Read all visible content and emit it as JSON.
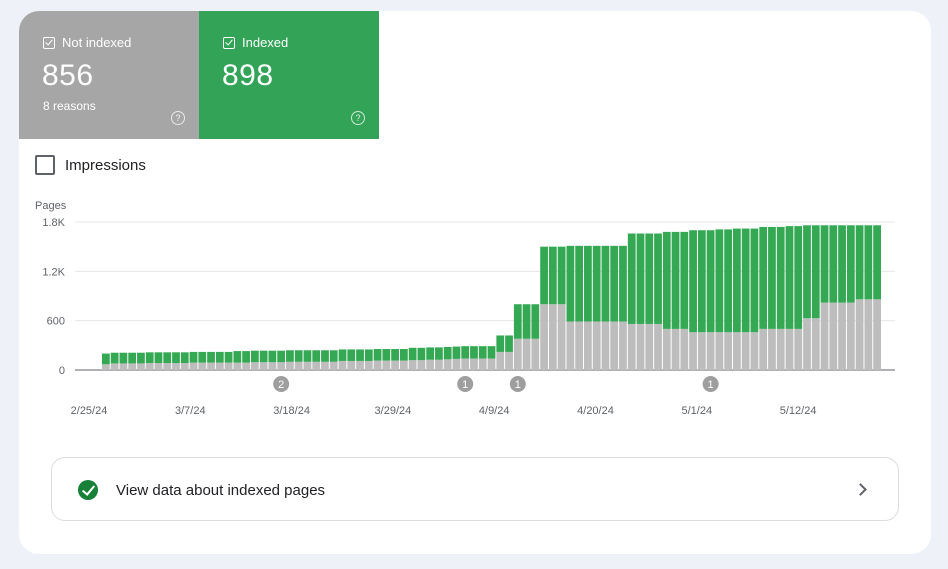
{
  "tiles": {
    "not_indexed": {
      "label": "Not indexed",
      "value": "856",
      "sub": "8 reasons",
      "color": "#a6a6a6",
      "checked": true
    },
    "indexed": {
      "label": "Indexed",
      "value": "898",
      "color": "#33a457",
      "checked": true
    }
  },
  "impressions": {
    "label": "Impressions",
    "checked": false
  },
  "view_link": {
    "label": "View data about indexed pages"
  },
  "icons": {
    "tile_check": "checkbox-checked-icon",
    "help": "help-circle-icon",
    "impressions_checkbox": "checkbox-empty-icon",
    "success": "check-circle-icon",
    "chevron": "chevron-right-icon"
  },
  "chart_data": {
    "type": "bar",
    "stacked": true,
    "ylabel": "Pages",
    "yticks": [
      "0",
      "600",
      "1.2K",
      "1.8K"
    ],
    "ylim": [
      0,
      1800
    ],
    "x_tick_labels": [
      "2/25/24",
      "3/7/24",
      "3/18/24",
      "3/29/24",
      "4/9/24",
      "4/20/24",
      "5/1/24",
      "5/12/24"
    ],
    "date_range": [
      "2/26/24",
      "5/22/24"
    ],
    "grid": true,
    "colors": {
      "not_indexed": "#bdbdbd",
      "indexed": "#34a853"
    },
    "series": [
      {
        "name": "Not indexed",
        "values": [
          70,
          80,
          80,
          80,
          80,
          85,
          85,
          85,
          85,
          85,
          90,
          90,
          90,
          90,
          90,
          90,
          90,
          95,
          95,
          95,
          95,
          100,
          100,
          100,
          100,
          100,
          100,
          110,
          110,
          110,
          110,
          115,
          115,
          115,
          115,
          120,
          120,
          125,
          125,
          130,
          135,
          140,
          140,
          140,
          140,
          220,
          220,
          380,
          380,
          380,
          800,
          800,
          800,
          590,
          590,
          590,
          590,
          590,
          590,
          590,
          560,
          560,
          560,
          560,
          500,
          500,
          500,
          460,
          460,
          460,
          460,
          460,
          460,
          460,
          460,
          500,
          500,
          500,
          500,
          500,
          630,
          630,
          820,
          820,
          820,
          820,
          860,
          860,
          860
        ]
      },
      {
        "name": "Indexed",
        "values": [
          130,
          130,
          130,
          130,
          130,
          130,
          130,
          130,
          130,
          130,
          130,
          130,
          130,
          130,
          130,
          140,
          140,
          140,
          140,
          140,
          140,
          140,
          140,
          140,
          140,
          140,
          140,
          140,
          140,
          140,
          140,
          140,
          140,
          140,
          140,
          150,
          150,
          150,
          150,
          150,
          150,
          150,
          150,
          150,
          150,
          200,
          200,
          420,
          420,
          420,
          700,
          700,
          700,
          920,
          920,
          920,
          920,
          920,
          920,
          920,
          1100,
          1100,
          1100,
          1100,
          1180,
          1180,
          1180,
          1240,
          1240,
          1240,
          1250,
          1250,
          1260,
          1260,
          1260,
          1240,
          1240,
          1240,
          1250,
          1250,
          1130,
          1130,
          940,
          940,
          940,
          940,
          900,
          900,
          900
        ]
      }
    ],
    "annotations": [
      {
        "label": "2",
        "date": "3/17/24"
      },
      {
        "label": "1",
        "date": "4/7/24"
      },
      {
        "label": "1",
        "date": "4/13/24"
      },
      {
        "label": "1",
        "date": "5/5/24"
      }
    ]
  }
}
